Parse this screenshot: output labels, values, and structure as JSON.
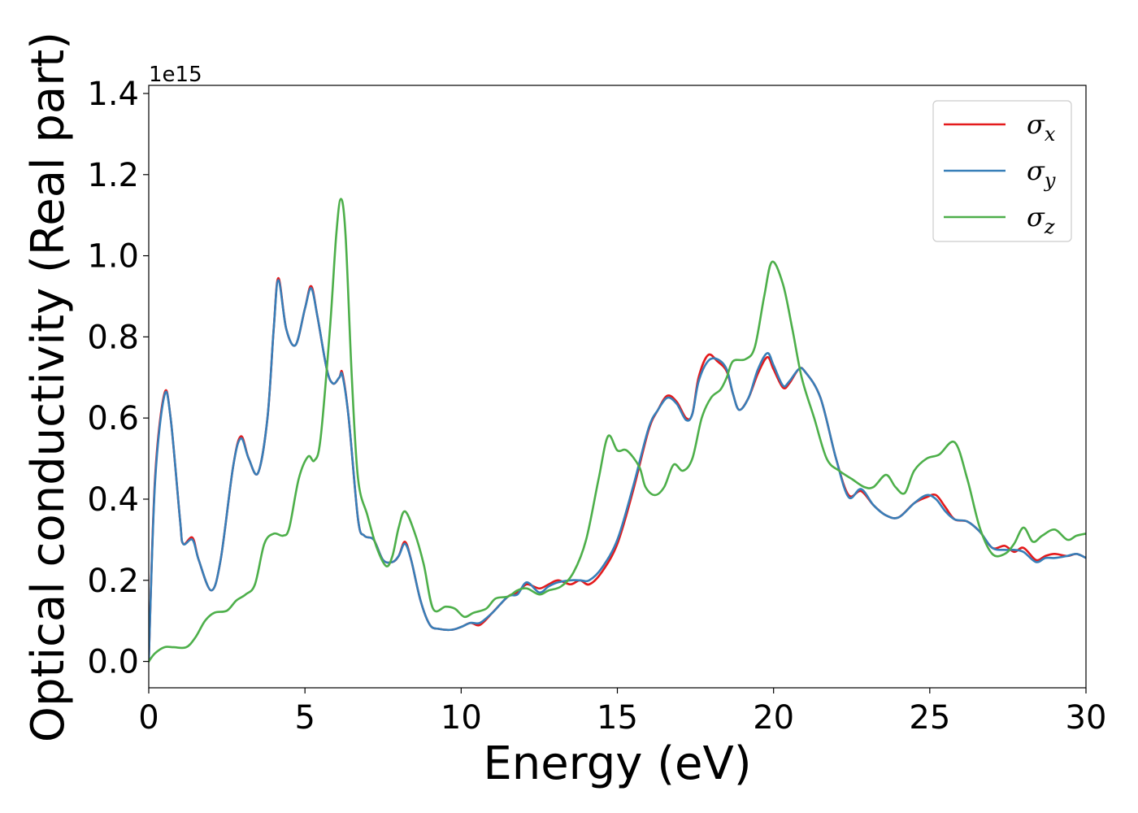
{
  "chart_data": {
    "type": "line",
    "title": "",
    "xlabel": "Energy (eV)",
    "ylabel": "Optical conductivity (Real part)",
    "y_offset_text": "1e15",
    "xlim": [
      0,
      30
    ],
    "ylim": [
      -0.065,
      1.42
    ],
    "xticks": [
      0,
      5,
      10,
      15,
      20,
      25,
      30
    ],
    "xtick_labels": [
      "0",
      "5",
      "10",
      "15",
      "20",
      "25",
      "30"
    ],
    "yticks": [
      0.0,
      0.2,
      0.4,
      0.6,
      0.8,
      1.0,
      1.2,
      1.4
    ],
    "ytick_labels": [
      "0.0",
      "0.2",
      "0.4",
      "0.6",
      "0.8",
      "1.0",
      "1.2",
      "1.4"
    ],
    "grid": false,
    "legend_position": "top-right",
    "series": [
      {
        "name": "σx",
        "symbol": "σ",
        "subscript": "x",
        "color": "#e41a1c",
        "points": [
          [
            0,
            0.0
          ],
          [
            0.2,
            0.45
          ],
          [
            0.5,
            0.66
          ],
          [
            0.7,
            0.6
          ],
          [
            1.0,
            0.35
          ],
          [
            1.1,
            0.29
          ],
          [
            1.4,
            0.305
          ],
          [
            1.6,
            0.25
          ],
          [
            2.0,
            0.175
          ],
          [
            2.3,
            0.25
          ],
          [
            2.7,
            0.48
          ],
          [
            2.95,
            0.555
          ],
          [
            3.2,
            0.5
          ],
          [
            3.5,
            0.465
          ],
          [
            3.8,
            0.6
          ],
          [
            4.0,
            0.82
          ],
          [
            4.15,
            0.945
          ],
          [
            4.4,
            0.82
          ],
          [
            4.7,
            0.78
          ],
          [
            5.0,
            0.87
          ],
          [
            5.2,
            0.925
          ],
          [
            5.4,
            0.85
          ],
          [
            5.7,
            0.72
          ],
          [
            5.9,
            0.685
          ],
          [
            6.1,
            0.7
          ],
          [
            6.2,
            0.71
          ],
          [
            6.4,
            0.6
          ],
          [
            6.7,
            0.35
          ],
          [
            6.9,
            0.31
          ],
          [
            7.2,
            0.3
          ],
          [
            7.5,
            0.25
          ],
          [
            7.8,
            0.245
          ],
          [
            8.0,
            0.26
          ],
          [
            8.2,
            0.295
          ],
          [
            8.4,
            0.25
          ],
          [
            8.7,
            0.15
          ],
          [
            9.0,
            0.09
          ],
          [
            9.3,
            0.08
          ],
          [
            9.7,
            0.078
          ],
          [
            10.0,
            0.085
          ],
          [
            10.3,
            0.095
          ],
          [
            10.6,
            0.09
          ],
          [
            11.0,
            0.12
          ],
          [
            11.5,
            0.16
          ],
          [
            11.8,
            0.17
          ],
          [
            12.1,
            0.19
          ],
          [
            12.5,
            0.18
          ],
          [
            12.8,
            0.19
          ],
          [
            13.1,
            0.2
          ],
          [
            13.5,
            0.19
          ],
          [
            13.8,
            0.2
          ],
          [
            14.1,
            0.19
          ],
          [
            14.5,
            0.22
          ],
          [
            15.0,
            0.29
          ],
          [
            15.5,
            0.42
          ],
          [
            16.0,
            0.57
          ],
          [
            16.3,
            0.62
          ],
          [
            16.6,
            0.655
          ],
          [
            16.9,
            0.64
          ],
          [
            17.2,
            0.6
          ],
          [
            17.4,
            0.61
          ],
          [
            17.6,
            0.7
          ],
          [
            17.9,
            0.755
          ],
          [
            18.2,
            0.74
          ],
          [
            18.5,
            0.715
          ],
          [
            18.7,
            0.66
          ],
          [
            18.9,
            0.62
          ],
          [
            19.2,
            0.65
          ],
          [
            19.5,
            0.71
          ],
          [
            19.8,
            0.75
          ],
          [
            20.0,
            0.72
          ],
          [
            20.3,
            0.675
          ],
          [
            20.5,
            0.685
          ],
          [
            20.8,
            0.72
          ],
          [
            21.0,
            0.715
          ],
          [
            21.5,
            0.65
          ],
          [
            22.0,
            0.5
          ],
          [
            22.4,
            0.41
          ],
          [
            22.8,
            0.42
          ],
          [
            23.2,
            0.385
          ],
          [
            23.6,
            0.36
          ],
          [
            24.0,
            0.355
          ],
          [
            24.5,
            0.39
          ],
          [
            24.9,
            0.405
          ],
          [
            25.2,
            0.41
          ],
          [
            25.5,
            0.38
          ],
          [
            25.8,
            0.35
          ],
          [
            26.2,
            0.345
          ],
          [
            26.6,
            0.32
          ],
          [
            27.0,
            0.28
          ],
          [
            27.4,
            0.285
          ],
          [
            27.7,
            0.27
          ],
          [
            28.0,
            0.28
          ],
          [
            28.4,
            0.25
          ],
          [
            28.7,
            0.26
          ],
          [
            29.0,
            0.265
          ],
          [
            29.4,
            0.26
          ],
          [
            29.7,
            0.265
          ],
          [
            30.0,
            0.255
          ]
        ]
      },
      {
        "name": "σy",
        "symbol": "σ",
        "subscript": "y",
        "color": "#377eb8",
        "points": [
          [
            0,
            0.0
          ],
          [
            0.2,
            0.44
          ],
          [
            0.5,
            0.655
          ],
          [
            0.7,
            0.6
          ],
          [
            1.0,
            0.35
          ],
          [
            1.1,
            0.29
          ],
          [
            1.4,
            0.3
          ],
          [
            1.6,
            0.25
          ],
          [
            2.0,
            0.175
          ],
          [
            2.3,
            0.25
          ],
          [
            2.7,
            0.48
          ],
          [
            2.95,
            0.55
          ],
          [
            3.2,
            0.5
          ],
          [
            3.5,
            0.465
          ],
          [
            3.8,
            0.6
          ],
          [
            4.0,
            0.82
          ],
          [
            4.15,
            0.94
          ],
          [
            4.4,
            0.82
          ],
          [
            4.7,
            0.78
          ],
          [
            5.0,
            0.87
          ],
          [
            5.2,
            0.92
          ],
          [
            5.4,
            0.85
          ],
          [
            5.7,
            0.72
          ],
          [
            5.9,
            0.685
          ],
          [
            6.1,
            0.7
          ],
          [
            6.2,
            0.705
          ],
          [
            6.4,
            0.6
          ],
          [
            6.7,
            0.35
          ],
          [
            6.9,
            0.31
          ],
          [
            7.2,
            0.3
          ],
          [
            7.5,
            0.25
          ],
          [
            7.8,
            0.245
          ],
          [
            8.0,
            0.26
          ],
          [
            8.2,
            0.29
          ],
          [
            8.4,
            0.25
          ],
          [
            8.7,
            0.15
          ],
          [
            9.0,
            0.09
          ],
          [
            9.3,
            0.08
          ],
          [
            9.7,
            0.078
          ],
          [
            10.0,
            0.085
          ],
          [
            10.3,
            0.095
          ],
          [
            10.6,
            0.095
          ],
          [
            11.0,
            0.12
          ],
          [
            11.5,
            0.16
          ],
          [
            11.8,
            0.165
          ],
          [
            12.1,
            0.195
          ],
          [
            12.5,
            0.17
          ],
          [
            12.8,
            0.185
          ],
          [
            13.1,
            0.195
          ],
          [
            13.5,
            0.2
          ],
          [
            13.8,
            0.2
          ],
          [
            14.1,
            0.2
          ],
          [
            14.5,
            0.23
          ],
          [
            15.0,
            0.3
          ],
          [
            15.5,
            0.43
          ],
          [
            16.0,
            0.575
          ],
          [
            16.3,
            0.62
          ],
          [
            16.6,
            0.65
          ],
          [
            16.9,
            0.635
          ],
          [
            17.2,
            0.595
          ],
          [
            17.4,
            0.61
          ],
          [
            17.6,
            0.69
          ],
          [
            17.9,
            0.74
          ],
          [
            18.2,
            0.745
          ],
          [
            18.5,
            0.72
          ],
          [
            18.7,
            0.66
          ],
          [
            18.9,
            0.62
          ],
          [
            19.2,
            0.65
          ],
          [
            19.5,
            0.72
          ],
          [
            19.8,
            0.76
          ],
          [
            20.0,
            0.73
          ],
          [
            20.3,
            0.68
          ],
          [
            20.5,
            0.69
          ],
          [
            20.8,
            0.72
          ],
          [
            21.0,
            0.715
          ],
          [
            21.5,
            0.65
          ],
          [
            22.0,
            0.5
          ],
          [
            22.4,
            0.405
          ],
          [
            22.8,
            0.425
          ],
          [
            23.2,
            0.385
          ],
          [
            23.6,
            0.36
          ],
          [
            24.0,
            0.355
          ],
          [
            24.5,
            0.39
          ],
          [
            24.9,
            0.41
          ],
          [
            25.2,
            0.4
          ],
          [
            25.5,
            0.37
          ],
          [
            25.8,
            0.35
          ],
          [
            26.2,
            0.345
          ],
          [
            26.6,
            0.32
          ],
          [
            27.0,
            0.28
          ],
          [
            27.4,
            0.275
          ],
          [
            27.7,
            0.275
          ],
          [
            28.0,
            0.27
          ],
          [
            28.4,
            0.245
          ],
          [
            28.7,
            0.255
          ],
          [
            29.0,
            0.255
          ],
          [
            29.4,
            0.26
          ],
          [
            29.7,
            0.265
          ],
          [
            30.0,
            0.255
          ]
        ]
      },
      {
        "name": "σz",
        "symbol": "σ",
        "subscript": "z",
        "color": "#4daf4a",
        "points": [
          [
            0,
            0.0
          ],
          [
            0.2,
            0.02
          ],
          [
            0.5,
            0.035
          ],
          [
            0.8,
            0.035
          ],
          [
            1.2,
            0.035
          ],
          [
            1.5,
            0.06
          ],
          [
            1.8,
            0.1
          ],
          [
            2.1,
            0.12
          ],
          [
            2.5,
            0.125
          ],
          [
            2.8,
            0.15
          ],
          [
            3.1,
            0.165
          ],
          [
            3.4,
            0.19
          ],
          [
            3.7,
            0.29
          ],
          [
            4.0,
            0.315
          ],
          [
            4.3,
            0.31
          ],
          [
            4.5,
            0.33
          ],
          [
            4.8,
            0.45
          ],
          [
            5.1,
            0.505
          ],
          [
            5.3,
            0.495
          ],
          [
            5.5,
            0.55
          ],
          [
            5.8,
            0.82
          ],
          [
            6.0,
            1.05
          ],
          [
            6.15,
            1.14
          ],
          [
            6.3,
            1.05
          ],
          [
            6.5,
            0.7
          ],
          [
            6.7,
            0.45
          ],
          [
            7.0,
            0.36
          ],
          [
            7.3,
            0.28
          ],
          [
            7.6,
            0.235
          ],
          [
            7.8,
            0.26
          ],
          [
            8.0,
            0.33
          ],
          [
            8.2,
            0.37
          ],
          [
            8.5,
            0.32
          ],
          [
            8.8,
            0.24
          ],
          [
            9.1,
            0.13
          ],
          [
            9.5,
            0.135
          ],
          [
            9.8,
            0.13
          ],
          [
            10.1,
            0.11
          ],
          [
            10.4,
            0.12
          ],
          [
            10.8,
            0.13
          ],
          [
            11.1,
            0.155
          ],
          [
            11.5,
            0.16
          ],
          [
            11.8,
            0.175
          ],
          [
            12.1,
            0.18
          ],
          [
            12.5,
            0.165
          ],
          [
            12.8,
            0.175
          ],
          [
            13.2,
            0.185
          ],
          [
            13.6,
            0.22
          ],
          [
            14.0,
            0.3
          ],
          [
            14.4,
            0.45
          ],
          [
            14.7,
            0.555
          ],
          [
            15.0,
            0.52
          ],
          [
            15.3,
            0.52
          ],
          [
            15.7,
            0.48
          ],
          [
            15.9,
            0.43
          ],
          [
            16.2,
            0.41
          ],
          [
            16.5,
            0.43
          ],
          [
            16.8,
            0.485
          ],
          [
            17.1,
            0.47
          ],
          [
            17.4,
            0.5
          ],
          [
            17.7,
            0.6
          ],
          [
            18.0,
            0.65
          ],
          [
            18.3,
            0.67
          ],
          [
            18.5,
            0.7
          ],
          [
            18.7,
            0.74
          ],
          [
            19.1,
            0.745
          ],
          [
            19.4,
            0.775
          ],
          [
            19.7,
            0.9
          ],
          [
            19.95,
            0.985
          ],
          [
            20.3,
            0.93
          ],
          [
            20.6,
            0.82
          ],
          [
            20.9,
            0.7
          ],
          [
            21.3,
            0.6
          ],
          [
            21.7,
            0.5
          ],
          [
            22.1,
            0.47
          ],
          [
            22.5,
            0.45
          ],
          [
            22.9,
            0.43
          ],
          [
            23.2,
            0.43
          ],
          [
            23.6,
            0.46
          ],
          [
            23.9,
            0.43
          ],
          [
            24.2,
            0.415
          ],
          [
            24.5,
            0.47
          ],
          [
            24.9,
            0.5
          ],
          [
            25.3,
            0.51
          ],
          [
            25.8,
            0.54
          ],
          [
            26.2,
            0.45
          ],
          [
            26.6,
            0.33
          ],
          [
            27.0,
            0.265
          ],
          [
            27.4,
            0.265
          ],
          [
            27.7,
            0.29
          ],
          [
            28.0,
            0.33
          ],
          [
            28.3,
            0.295
          ],
          [
            28.6,
            0.31
          ],
          [
            29.0,
            0.325
          ],
          [
            29.4,
            0.3
          ],
          [
            29.7,
            0.31
          ],
          [
            30.0,
            0.315
          ]
        ]
      }
    ]
  }
}
